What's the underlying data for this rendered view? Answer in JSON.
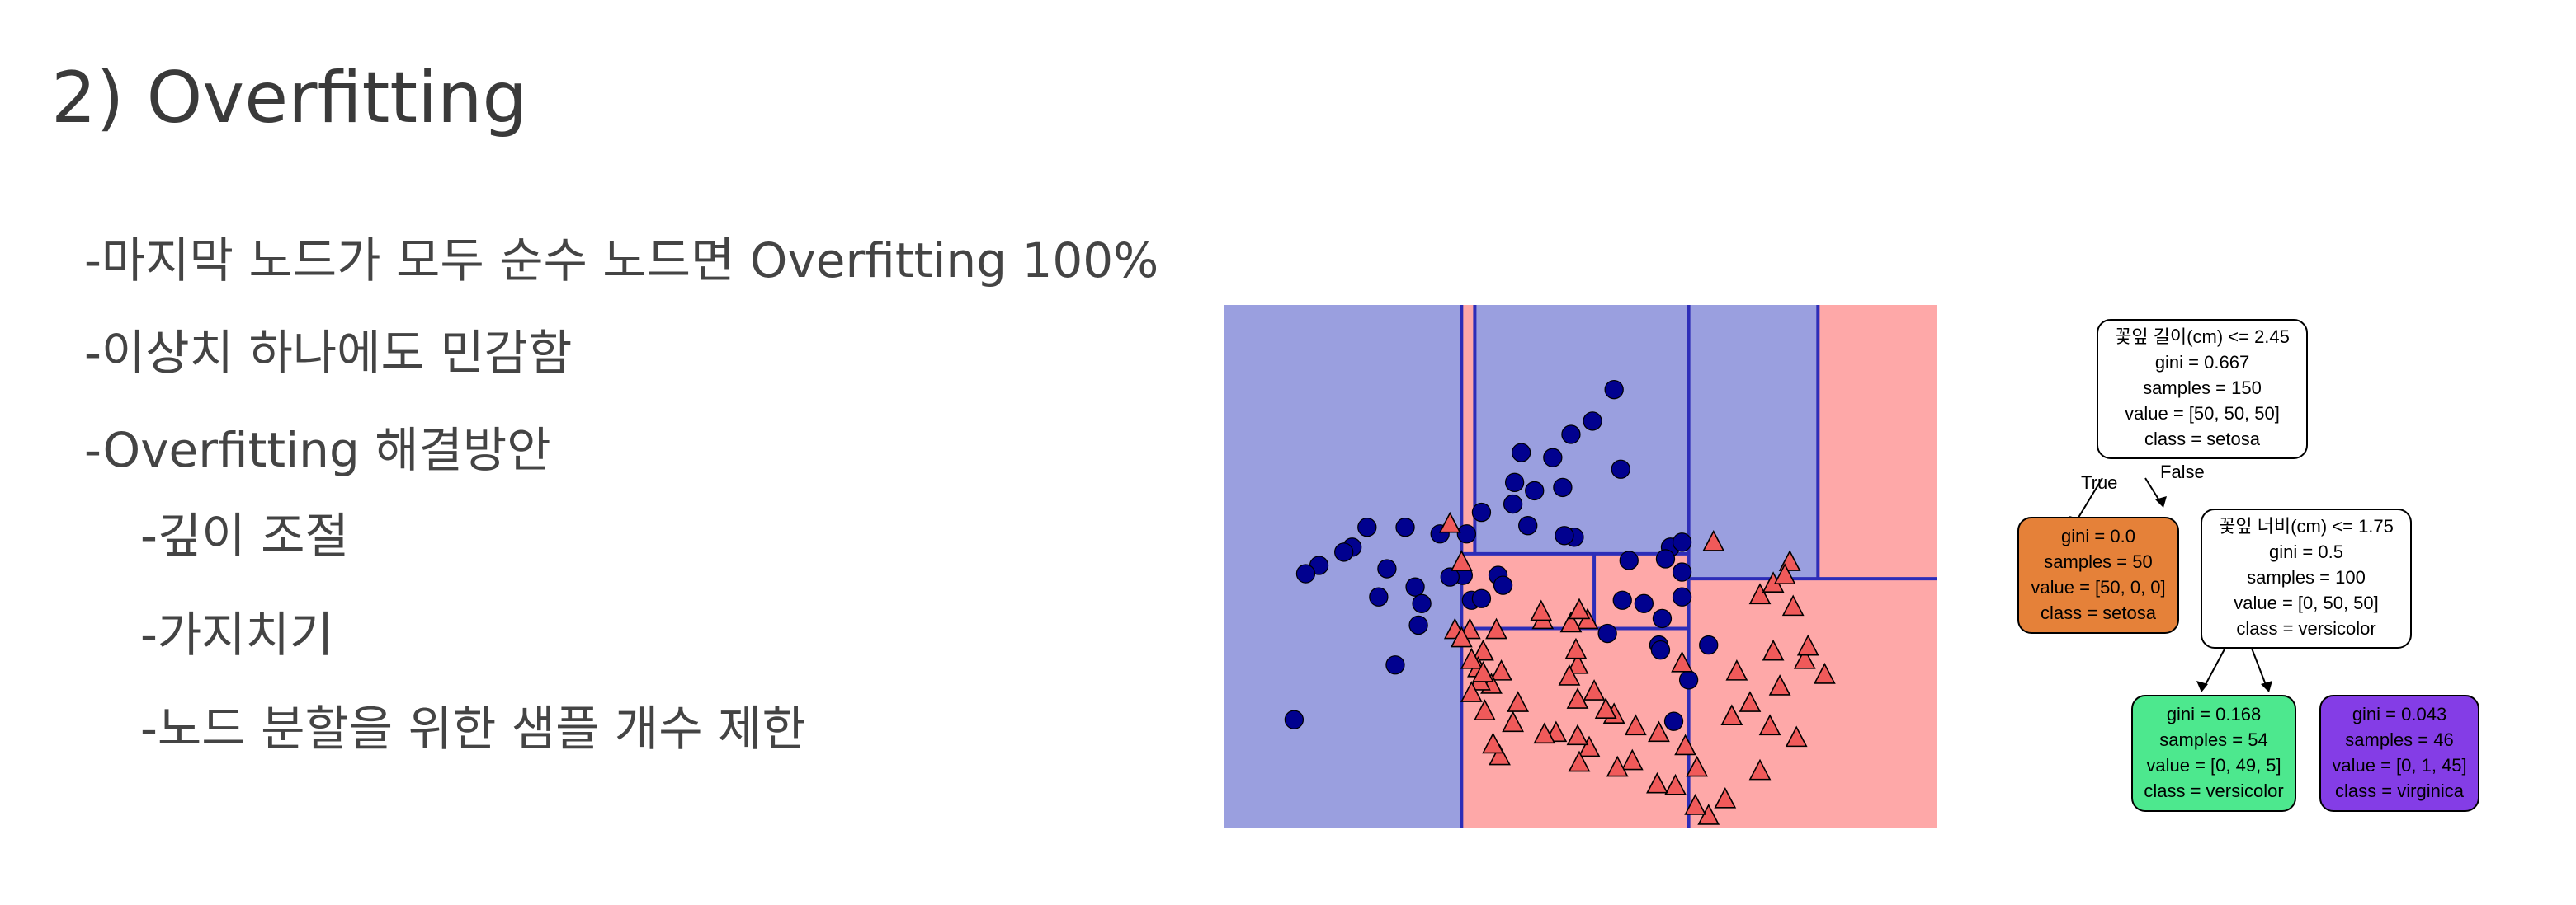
{
  "title": "2) Overfitting",
  "bullets": [
    "-마지막 노드가 모두 순수 노드면 Overfitting 100%",
    "-이상치 하나에도 민감함",
    "-Overfitting 해결방안",
    "-깊이 조절",
    "-가지치기",
    "-노드 분할을 위한 샘플 개수 제한"
  ],
  "scatter": {
    "colors": {
      "class0_region": "#9a9fdf",
      "class1_region": "#fea8a8",
      "boundary": "#2d2db8",
      "circle": "#01018f",
      "triangle": "#f05a5a"
    },
    "circles": [
      [
        239,
        99
      ],
      [
        235,
        51
      ],
      [
        222,
        70
      ],
      [
        209,
        78
      ],
      [
        198,
        92
      ],
      [
        179,
        89
      ],
      [
        175,
        107
      ],
      [
        187,
        112
      ],
      [
        204,
        110
      ],
      [
        174,
        120
      ],
      [
        155,
        125
      ],
      [
        109,
        134
      ],
      [
        130,
        138
      ],
      [
        146,
        138
      ],
      [
        183,
        133
      ],
      [
        144,
        163
      ],
      [
        165,
        163
      ],
      [
        168,
        169
      ],
      [
        136,
        164
      ],
      [
        115,
        170
      ],
      [
        98,
        159
      ],
      [
        86,
        134
      ],
      [
        77,
        146
      ],
      [
        72,
        149
      ],
      [
        57,
        157
      ],
      [
        49,
        162
      ],
      [
        93,
        176
      ],
      [
        119,
        180
      ],
      [
        149,
        178
      ],
      [
        117,
        193
      ],
      [
        103,
        217
      ],
      [
        155,
        177
      ],
      [
        211,
        140
      ],
      [
        205,
        139
      ],
      [
        244,
        154
      ],
      [
        240,
        178
      ],
      [
        253,
        180
      ],
      [
        231,
        198
      ],
      [
        269,
        146
      ],
      [
        266,
        153
      ],
      [
        276,
        143
      ],
      [
        276,
        161
      ],
      [
        276,
        176
      ],
      [
        264,
        189
      ],
      [
        262,
        205
      ],
      [
        263,
        208
      ],
      [
        292,
        205
      ],
      [
        280,
        226
      ],
      [
        271,
        251
      ],
      [
        42,
        250
      ]
    ],
    "triangles": [
      [
        295,
        143
      ],
      [
        276,
        216
      ],
      [
        262,
        258
      ],
      [
        323,
        175
      ],
      [
        341,
        155
      ],
      [
        331,
        168
      ],
      [
        338,
        163
      ],
      [
        343,
        182
      ],
      [
        331,
        209
      ],
      [
        335,
        230
      ],
      [
        350,
        214
      ],
      [
        352,
        206
      ],
      [
        362,
        223
      ],
      [
        317,
        240
      ],
      [
        309,
        221
      ],
      [
        306,
        248
      ],
      [
        329,
        254
      ],
      [
        345,
        261
      ],
      [
        323,
        281
      ],
      [
        285,
        279
      ],
      [
        278,
        266
      ],
      [
        302,
        298
      ],
      [
        292,
        308
      ],
      [
        284,
        302
      ],
      [
        272,
        290
      ],
      [
        261,
        289
      ],
      [
        246,
        275
      ],
      [
        237,
        279
      ],
      [
        248,
        254
      ],
      [
        235,
        247
      ],
      [
        230,
        244
      ],
      [
        220,
        267
      ],
      [
        214,
        276
      ],
      [
        213,
        260
      ],
      [
        223,
        233
      ],
      [
        213,
        217
      ],
      [
        212,
        208
      ],
      [
        208,
        224
      ],
      [
        213,
        238
      ],
      [
        200,
        258
      ],
      [
        193,
        259
      ],
      [
        177,
        240
      ],
      [
        166,
        272
      ],
      [
        162,
        265
      ],
      [
        174,
        252
      ],
      [
        192,
        190
      ],
      [
        219,
        190
      ],
      [
        209,
        192
      ],
      [
        214,
        184
      ],
      [
        191,
        185
      ],
      [
        164,
        196
      ],
      [
        167,
        221
      ],
      [
        161,
        229
      ],
      [
        154,
        227
      ],
      [
        156,
        209
      ],
      [
        148,
        196
      ],
      [
        149,
        234
      ],
      [
        157,
        245
      ],
      [
        153,
        219
      ],
      [
        149,
        214
      ],
      [
        156,
        222
      ],
      [
        143,
        155
      ],
      [
        136,
        132
      ],
      [
        139,
        196
      ],
      [
        143,
        201
      ]
    ],
    "boundaries": [
      [
        [
          143,
          0
        ],
        [
          143,
          315
        ]
      ],
      [
        [
          151,
          0
        ],
        [
          151,
          150
        ]
      ],
      [
        [
          143,
          150
        ],
        [
          280,
          150
        ]
      ],
      [
        [
          143,
          195
        ],
        [
          280,
          195
        ]
      ],
      [
        [
          223,
          150
        ],
        [
          223,
          195
        ]
      ],
      [
        [
          280,
          0
        ],
        [
          280,
          315
        ]
      ],
      [
        [
          358,
          0
        ],
        [
          358,
          165
        ]
      ],
      [
        [
          280,
          165
        ],
        [
          430,
          165
        ]
      ]
    ]
  },
  "tree": {
    "root": {
      "lines": [
        "꽃잎 길이(cm) <= 2.45",
        "gini = 0.667",
        "samples = 150",
        "value = [50, 50, 50]",
        "class = setosa"
      ],
      "color": "#ffffff"
    },
    "left": {
      "lines": [
        "gini = 0.0",
        "samples = 50",
        "value = [50, 0, 0]",
        "class = setosa"
      ],
      "color": "#e58139"
    },
    "right": {
      "lines": [
        "꽃잎 너비(cm) <= 1.75",
        "gini = 0.5",
        "samples = 100",
        "value = [0, 50, 50]",
        "class = versicolor"
      ],
      "color": "#ffffff"
    },
    "right_left": {
      "lines": [
        "gini = 0.168",
        "samples = 54",
        "value = [0, 49, 5]",
        "class = versicolor"
      ],
      "color": "#4de88e"
    },
    "right_right": {
      "lines": [
        "gini = 0.043",
        "samples = 46",
        "value = [0, 1, 45]",
        "class = virginica"
      ],
      "color": "#843de6"
    },
    "true_label": "True",
    "false_label": "False"
  }
}
